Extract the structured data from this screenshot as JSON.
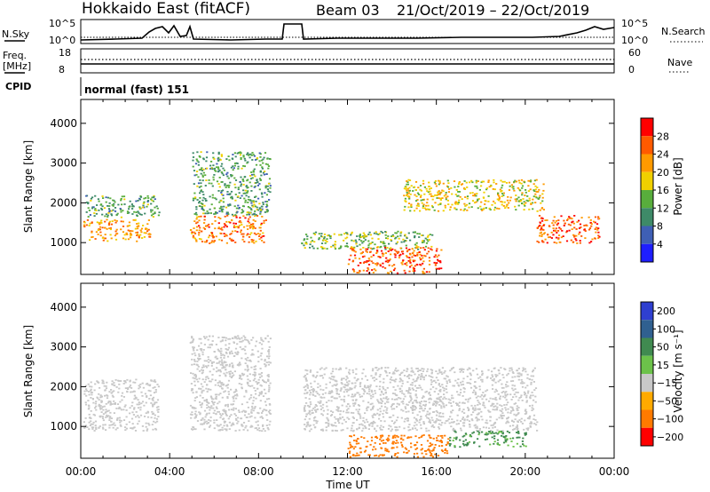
{
  "header": {
    "title": "Hokkaido East (fitACF)",
    "beam": "Beam 03",
    "dates": "21/Oct/2019 – 22/Oct/2019"
  },
  "top_panels": {
    "nsky_label": "N.Sky",
    "nsearch_label": "N.Search",
    "nsky_ticks": [
      "10^5",
      "10^0"
    ],
    "nsearch_ticks": [
      "10^5",
      "10^0"
    ],
    "freq_label_1": "Freq.",
    "freq_label_2": "[MHz]",
    "freq_ticks": [
      "18",
      "8"
    ],
    "nave_label": "Nave",
    "nave_ticks": [
      "60",
      "0"
    ],
    "cpid_label": "CPID",
    "cpid_text": "normal (fast) 151"
  },
  "colors": {
    "power": [
      "#1e1eff",
      "#3f5fb5",
      "#3e8a68",
      "#58ad3c",
      "#f0d000",
      "#ff9a00",
      "#ff5a00",
      "#ff0000"
    ],
    "velocity": [
      "#2f3fd0",
      "#306090",
      "#408a50",
      "#6cc24a",
      "#c8c8c8",
      "#ffaa00",
      "#ff7a00",
      "#ff0000"
    ]
  },
  "chart_data": [
    {
      "type": "heatmap",
      "name": "power",
      "ylabel": "Slant Range [km]",
      "xlabel": "Time UT",
      "x_ticks": [
        "00:00",
        "04:00",
        "08:00",
        "12:00",
        "16:00",
        "20:00",
        "00:00"
      ],
      "y_ticks": [
        1000,
        2000,
        3000,
        4000
      ],
      "ylim": [
        200,
        4600
      ],
      "xlim_hours": [
        0,
        24
      ],
      "colorbar": {
        "label": "Power [dB]",
        "tick_labels": [
          "4",
          "8",
          "12",
          "16",
          "20",
          "24",
          "28"
        ],
        "range": [
          0,
          32
        ]
      },
      "regions": [
        {
          "t0": 0.1,
          "t1": 3.1,
          "r0": 1050,
          "r1": 1600,
          "value": 22
        },
        {
          "t0": 0.2,
          "t1": 3.5,
          "r0": 1650,
          "r1": 2200,
          "value": 12
        },
        {
          "t0": 4.9,
          "t1": 8.3,
          "r0": 1000,
          "r1": 1700,
          "value": 24
        },
        {
          "t0": 5.0,
          "t1": 8.5,
          "r0": 1700,
          "r1": 3300,
          "value": 12
        },
        {
          "t0": 9.9,
          "t1": 15.8,
          "r0": 850,
          "r1": 1300,
          "value": 14
        },
        {
          "t0": 12.0,
          "t1": 16.2,
          "r0": 250,
          "r1": 900,
          "value": 26
        },
        {
          "t0": 14.5,
          "t1": 20.8,
          "r0": 1800,
          "r1": 2600,
          "value": 18
        },
        {
          "t0": 20.5,
          "t1": 23.3,
          "r0": 1000,
          "r1": 1700,
          "value": 26
        }
      ]
    },
    {
      "type": "heatmap",
      "name": "velocity",
      "ylabel": "Slant Range [km]",
      "xlabel": "Time UT",
      "x_ticks": [
        "00:00",
        "04:00",
        "08:00",
        "12:00",
        "16:00",
        "20:00",
        "00:00"
      ],
      "y_ticks": [
        1000,
        2000,
        3000,
        4000
      ],
      "ylim": [
        200,
        4600
      ],
      "xlim_hours": [
        0,
        24
      ],
      "colorbar": {
        "label": "Velocity [m s⁻¹]",
        "tick_labels": [
          "200",
          "100",
          "50",
          "15",
          "−15",
          "−50",
          "−100",
          "−200"
        ]
      },
      "regions": [
        {
          "t0": 0.1,
          "t1": 3.5,
          "r0": 900,
          "r1": 2200,
          "value": 0
        },
        {
          "t0": 4.9,
          "t1": 8.5,
          "r0": 900,
          "r1": 3300,
          "value": 0
        },
        {
          "t0": 10.0,
          "t1": 20.5,
          "r0": 900,
          "r1": 2500,
          "value": 0
        },
        {
          "t0": 12.0,
          "t1": 16.5,
          "r0": 250,
          "r1": 800,
          "value": -60
        },
        {
          "t0": 16.5,
          "t1": 20.0,
          "r0": 500,
          "r1": 900,
          "value": 40
        }
      ]
    }
  ]
}
